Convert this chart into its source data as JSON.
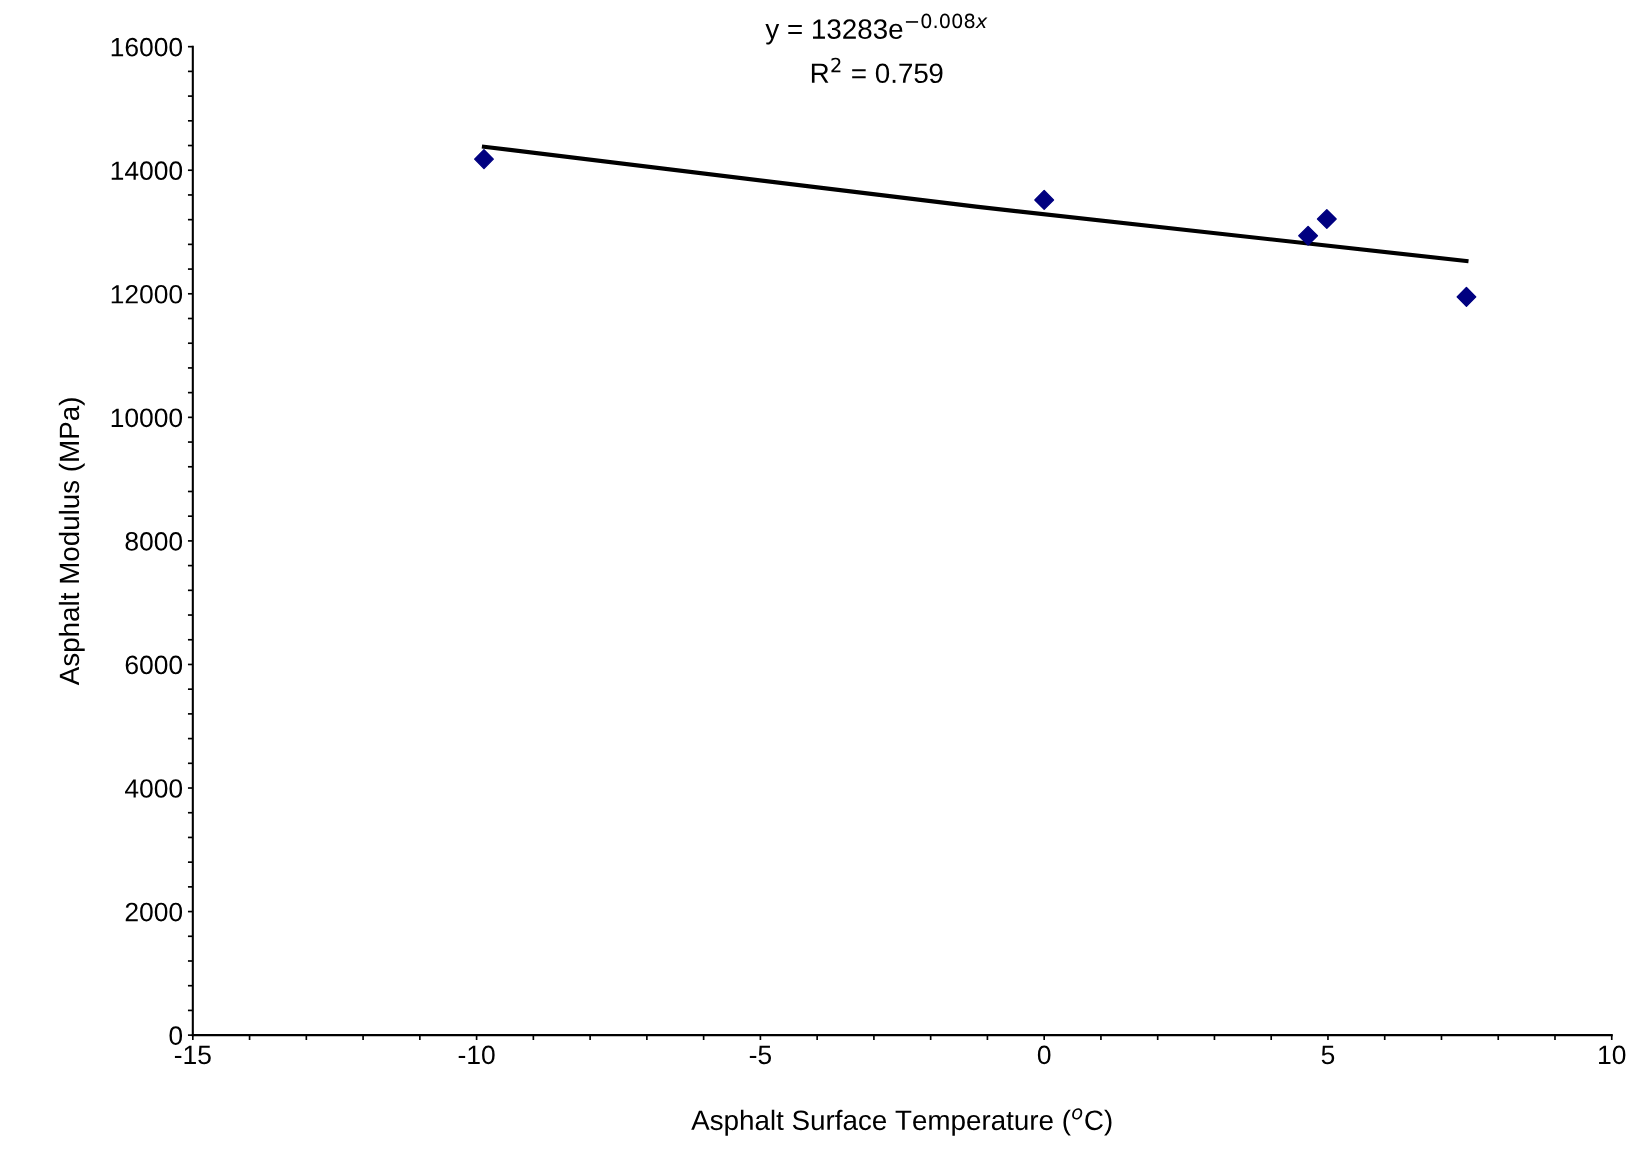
{
  "chart_data": {
    "type": "scatter",
    "xlabel": "Asphalt Surface Temperature ($^{o}$C)",
    "ylabel": "Asphalt Modulus (MPa)",
    "annotations": [
      "y = 13283e$^{−0.008x}$",
      "R$^{2}$ = 0.759"
    ],
    "x": [
      -9.87,
      0.0,
      4.65,
      4.98,
      7.44
    ],
    "series": [
      {
        "color": "#000080",
        "values": [
          14180,
          13520,
          12940,
          13210,
          11950
        ],
        "marker": "diamond"
      },
      {
        "type": "line",
        "color": "#000000",
        "x": [
          -9.87,
          -1.2,
          7.44
        ],
        "values": [
          14380,
          13410,
          12530
        ],
        "marker": "none"
      }
    ],
    "xlim": [
      -15,
      10
    ],
    "xticks": [
      -15,
      {
        "value": -14,
        "label": null
      },
      {
        "value": -13,
        "label": null
      },
      {
        "value": -12,
        "label": null
      },
      {
        "value": -11,
        "label": null
      },
      -10,
      {
        "value": -9,
        "label": null
      },
      {
        "value": -8,
        "label": null
      },
      {
        "value": -7,
        "label": null
      },
      {
        "value": -6,
        "label": null
      },
      -5,
      {
        "value": -4,
        "label": null
      },
      {
        "value": -3,
        "label": null
      },
      {
        "value": -2,
        "label": null
      },
      {
        "value": -1,
        "label": null
      },
      0,
      {
        "value": 1,
        "label": null
      },
      {
        "value": 2,
        "label": null
      },
      {
        "value": 3,
        "label": null
      },
      {
        "value": 4,
        "label": null
      },
      5,
      {
        "value": 6,
        "label": null
      },
      {
        "value": 7,
        "label": null
      },
      {
        "value": 8,
        "label": null
      },
      {
        "value": 9,
        "label": null
      },
      10
    ],
    "ylim": [
      0,
      16000
    ],
    "yticks": [
      0,
      {
        "value": 400,
        "label": null
      },
      {
        "value": 800,
        "label": null
      },
      {
        "value": 1200,
        "label": null
      },
      {
        "value": 1600,
        "label": null
      },
      2000,
      {
        "value": 2400,
        "label": null
      },
      {
        "value": 2800,
        "label": null
      },
      {
        "value": 3200,
        "label": null
      },
      {
        "value": 3600,
        "label": null
      },
      4000,
      {
        "value": 4400,
        "label": null
      },
      {
        "value": 4800,
        "label": null
      },
      {
        "value": 5200,
        "label": null
      },
      {
        "value": 5600,
        "label": null
      },
      6000,
      {
        "value": 6400,
        "label": null
      },
      {
        "value": 6800,
        "label": null
      },
      {
        "value": 7200,
        "label": null
      },
      {
        "value": 7600,
        "label": null
      },
      8000,
      {
        "value": 8400,
        "label": null
      },
      {
        "value": 8800,
        "label": null
      },
      {
        "value": 9200,
        "label": null
      },
      {
        "value": 9600,
        "label": null
      },
      10000,
      {
        "value": 10400,
        "label": null
      },
      {
        "value": 10800,
        "label": null
      },
      {
        "value": 11200,
        "label": null
      },
      {
        "value": 11600,
        "label": null
      },
      12000,
      {
        "value": 12400,
        "label": null
      },
      {
        "value": 12800,
        "label": null
      },
      {
        "value": 13200,
        "label": null
      },
      {
        "value": 13600,
        "label": null
      },
      14000,
      {
        "value": 14400,
        "label": null
      },
      {
        "value": 14800,
        "label": null
      },
      {
        "value": 15200,
        "label": null
      },
      {
        "value": 15600,
        "label": null
      },
      16000
    ],
    "grid": false,
    "legend": false
  }
}
